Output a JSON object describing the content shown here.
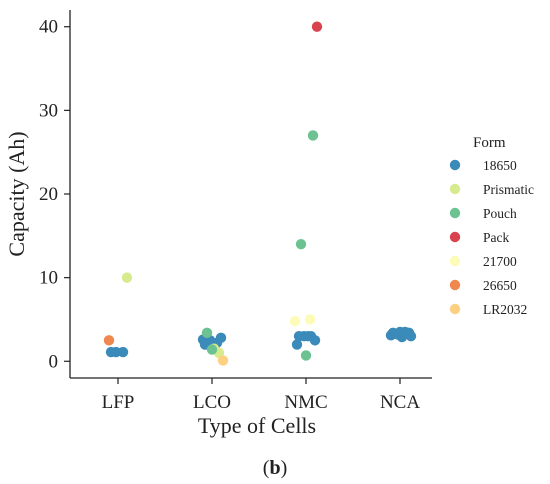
{
  "chart_data": {
    "type": "scatter",
    "title": "",
    "xlabel": "Type of Cells",
    "ylabel": "Capacity (Ah)",
    "categories": [
      "LFP",
      "LCO",
      "NMC",
      "NCA"
    ],
    "ylim": [
      -2,
      42
    ],
    "yticks": [
      0,
      10,
      20,
      30,
      40
    ],
    "grid": false,
    "legend_title": "Form",
    "legend_position": "right",
    "series": [
      {
        "name": "18650",
        "color": "#3b8bba",
        "points": [
          {
            "x": "LFP",
            "y": 1.1
          },
          {
            "x": "LFP",
            "y": 1.1
          },
          {
            "x": "LFP",
            "y": 1.1
          },
          {
            "x": "LCO",
            "y": 2.0
          },
          {
            "x": "LCO",
            "y": 2.2
          },
          {
            "x": "LCO",
            "y": 2.5
          },
          {
            "x": "LCO",
            "y": 2.8
          },
          {
            "x": "LCO",
            "y": 2.6
          },
          {
            "x": "NMC",
            "y": 3.0
          },
          {
            "x": "NMC",
            "y": 3.0
          },
          {
            "x": "NMC",
            "y": 3.0
          },
          {
            "x": "NMC",
            "y": 2.5
          },
          {
            "x": "NMC",
            "y": 2.0
          },
          {
            "x": "NMC",
            "y": 3.0
          },
          {
            "x": "NCA",
            "y": 3.4
          },
          {
            "x": "NCA",
            "y": 3.5
          },
          {
            "x": "NCA",
            "y": 3.2
          },
          {
            "x": "NCA",
            "y": 3.4
          },
          {
            "x": "NCA",
            "y": 3.1
          },
          {
            "x": "NCA",
            "y": 2.9
          },
          {
            "x": "NCA",
            "y": 3.4
          },
          {
            "x": "NCA",
            "y": 3.3
          },
          {
            "x": "NCA",
            "y": 3.5
          },
          {
            "x": "NCA",
            "y": 3.0
          }
        ]
      },
      {
        "name": "Prismatic",
        "color": "#d7eb8e",
        "points": [
          {
            "x": "LFP",
            "y": 10.0
          },
          {
            "x": "LCO",
            "y": 1.5
          },
          {
            "x": "LCO",
            "y": 1.0
          }
        ]
      },
      {
        "name": "Pouch",
        "color": "#6cc391",
        "points": [
          {
            "x": "LCO",
            "y": 3.4
          },
          {
            "x": "LCO",
            "y": 1.4
          },
          {
            "x": "NMC",
            "y": 27.0
          },
          {
            "x": "NMC",
            "y": 14.0
          },
          {
            "x": "NMC",
            "y": 0.7
          }
        ]
      },
      {
        "name": "Pack",
        "color": "#d9434f",
        "points": [
          {
            "x": "NMC",
            "y": 40.0
          }
        ]
      },
      {
        "name": "21700",
        "color": "#fdfbb8",
        "points": [
          {
            "x": "NMC",
            "y": 4.8
          },
          {
            "x": "NMC",
            "y": 5.0
          }
        ]
      },
      {
        "name": "26650",
        "color": "#f0874f",
        "points": [
          {
            "x": "LFP",
            "y": 2.5
          }
        ]
      },
      {
        "name": "LR2032",
        "color": "#fcd080",
        "points": [
          {
            "x": "LCO",
            "y": 0.1
          }
        ]
      }
    ]
  },
  "caption": {
    "open": "(",
    "letter": "b",
    "close": ")"
  }
}
